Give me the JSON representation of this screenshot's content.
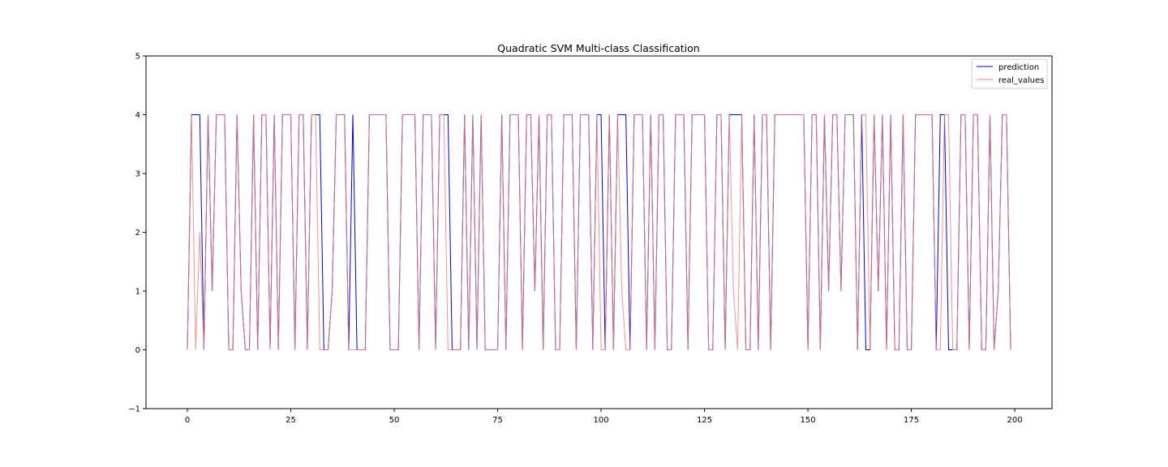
{
  "chart_data": {
    "type": "line",
    "title": "Quadratic SVM Multi-class Classification",
    "xlabel": "",
    "ylabel": "",
    "xlim": [
      -10,
      209
    ],
    "ylim": [
      -1,
      5
    ],
    "xticks": [
      0,
      25,
      50,
      75,
      100,
      125,
      150,
      175,
      200
    ],
    "yticks": [
      -1,
      0,
      1,
      2,
      3,
      4,
      5
    ],
    "grid": false,
    "legend_position": "top-right",
    "x": [
      0,
      1,
      2,
      3,
      4,
      5,
      6,
      7,
      8,
      9,
      10,
      11,
      12,
      13,
      14,
      15,
      16,
      17,
      18,
      19,
      20,
      21,
      22,
      23,
      24,
      25,
      26,
      27,
      28,
      29,
      30,
      31,
      32,
      33,
      34,
      35,
      36,
      37,
      38,
      39,
      40,
      41,
      42,
      43,
      44,
      45,
      46,
      47,
      48,
      49,
      50,
      51,
      52,
      53,
      54,
      55,
      56,
      57,
      58,
      59,
      60,
      61,
      62,
      63,
      64,
      65,
      66,
      67,
      68,
      69,
      70,
      71,
      72,
      73,
      74,
      75,
      76,
      77,
      78,
      79,
      80,
      81,
      82,
      83,
      84,
      85,
      86,
      87,
      88,
      89,
      90,
      91,
      92,
      93,
      94,
      95,
      96,
      97,
      98,
      99,
      100,
      101,
      102,
      103,
      104,
      105,
      106,
      107,
      108,
      109,
      110,
      111,
      112,
      113,
      114,
      115,
      116,
      117,
      118,
      119,
      120,
      121,
      122,
      123,
      124,
      125,
      126,
      127,
      128,
      129,
      130,
      131,
      132,
      133,
      134,
      135,
      136,
      137,
      138,
      139,
      140,
      141,
      142,
      143,
      144,
      145,
      146,
      147,
      148,
      149,
      150,
      151,
      152,
      153,
      154,
      155,
      156,
      157,
      158,
      159,
      160,
      161,
      162,
      163,
      164,
      165,
      166,
      167,
      168,
      169,
      170,
      171,
      172,
      173,
      174,
      175,
      176,
      177,
      178,
      179,
      180,
      181,
      182,
      183,
      184,
      185,
      186,
      187,
      188,
      189,
      190,
      191,
      192,
      193,
      194,
      195,
      196,
      197,
      198,
      199
    ],
    "series": [
      {
        "name": "prediction",
        "color": "#0000cc",
        "values": [
          0,
          4,
          4,
          4,
          0,
          4,
          1,
          4,
          4,
          4,
          0,
          0,
          4,
          1,
          0,
          0,
          4,
          0,
          4,
          4,
          0,
          4,
          0,
          4,
          4,
          4,
          0,
          4,
          4,
          0,
          4,
          4,
          4,
          0,
          0,
          1,
          4,
          4,
          4,
          0,
          4,
          0,
          0,
          0,
          4,
          4,
          4,
          4,
          4,
          0,
          0,
          0,
          4,
          4,
          4,
          4,
          0,
          4,
          4,
          4,
          0,
          4,
          4,
          4,
          0,
          0,
          0,
          4,
          0,
          4,
          0,
          4,
          0,
          0,
          0,
          0,
          4,
          0,
          4,
          4,
          4,
          0,
          4,
          4,
          1,
          4,
          0,
          4,
          4,
          0,
          0,
          4,
          4,
          4,
          0,
          4,
          4,
          4,
          0,
          4,
          4,
          0,
          4,
          0,
          4,
          4,
          4,
          0,
          4,
          4,
          4,
          0,
          4,
          0,
          4,
          4,
          0,
          0,
          4,
          4,
          4,
          0,
          4,
          4,
          4,
          4,
          0,
          0,
          4,
          4,
          0,
          4,
          4,
          4,
          4,
          0,
          0,
          4,
          0,
          4,
          4,
          0,
          4,
          4,
          4,
          4,
          4,
          4,
          4,
          4,
          0,
          4,
          4,
          0,
          4,
          1,
          4,
          4,
          1,
          4,
          4,
          4,
          0,
          4,
          0,
          0,
          4,
          1,
          4,
          0,
          4,
          0,
          0,
          4,
          0,
          0,
          4,
          4,
          4,
          4,
          4,
          0,
          4,
          4,
          0,
          0,
          0,
          4,
          4,
          0,
          4,
          4,
          0,
          0,
          4,
          0,
          1,
          4,
          4,
          0
        ]
      },
      {
        "name": "real_values",
        "color": "#f08080",
        "values": [
          0,
          4,
          0,
          2,
          0,
          4,
          1,
          4,
          4,
          4,
          0,
          0,
          4,
          1,
          0,
          0,
          4,
          0,
          4,
          4,
          0,
          4,
          0,
          4,
          4,
          4,
          0,
          4,
          4,
          0,
          4,
          4,
          0,
          0,
          0,
          1,
          4,
          4,
          4,
          0,
          0,
          0,
          0,
          0,
          4,
          4,
          4,
          4,
          4,
          0,
          0,
          0,
          4,
          4,
          4,
          4,
          0,
          4,
          4,
          4,
          0,
          4,
          4,
          0,
          0,
          0,
          0,
          4,
          0,
          4,
          0,
          4,
          0,
          0,
          0,
          0,
          4,
          0,
          4,
          4,
          4,
          0,
          4,
          4,
          1,
          4,
          0,
          4,
          4,
          0,
          0,
          4,
          4,
          4,
          0,
          4,
          4,
          4,
          0,
          4,
          0,
          0,
          4,
          0,
          4,
          1,
          0,
          0,
          4,
          4,
          4,
          0,
          4,
          0,
          4,
          4,
          0,
          0,
          4,
          4,
          4,
          0,
          4,
          4,
          4,
          4,
          0,
          0,
          4,
          4,
          0,
          4,
          1,
          0,
          4,
          0,
          0,
          4,
          0,
          4,
          4,
          0,
          4,
          4,
          4,
          4,
          4,
          4,
          4,
          4,
          0,
          4,
          4,
          0,
          4,
          1,
          4,
          4,
          1,
          4,
          4,
          4,
          0,
          4,
          4,
          0,
          4,
          1,
          4,
          0,
          4,
          0,
          0,
          4,
          0,
          0,
          4,
          4,
          4,
          4,
          4,
          0,
          0,
          4,
          4,
          0,
          0,
          4,
          4,
          0,
          4,
          4,
          0,
          0,
          4,
          0,
          1,
          4,
          4,
          0
        ]
      }
    ]
  }
}
